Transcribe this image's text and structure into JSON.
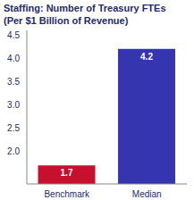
{
  "chart_data": {
    "type": "bar",
    "title": "Staffing: Number of Treasury FTEs",
    "subtitle": "(Per $1 Billion of Revenue)",
    "categories": [
      "Benchmark",
      "Median"
    ],
    "values": [
      1.7,
      4.2
    ],
    "colors": [
      "#c8102e",
      "#3535b0"
    ],
    "ylim": [
      1.3,
      4.6
    ],
    "yticks": [
      {
        "value": 2,
        "label": "2.0"
      },
      {
        "value": 2.5,
        "label": "2.5"
      },
      {
        "value": 3,
        "label": "3.0"
      },
      {
        "value": 3.5,
        "label": "3.5"
      },
      {
        "value": 4,
        "label": "4.0"
      },
      {
        "value": 4.5,
        "label": "4.5"
      }
    ],
    "grid": false,
    "data_labels": true
  }
}
